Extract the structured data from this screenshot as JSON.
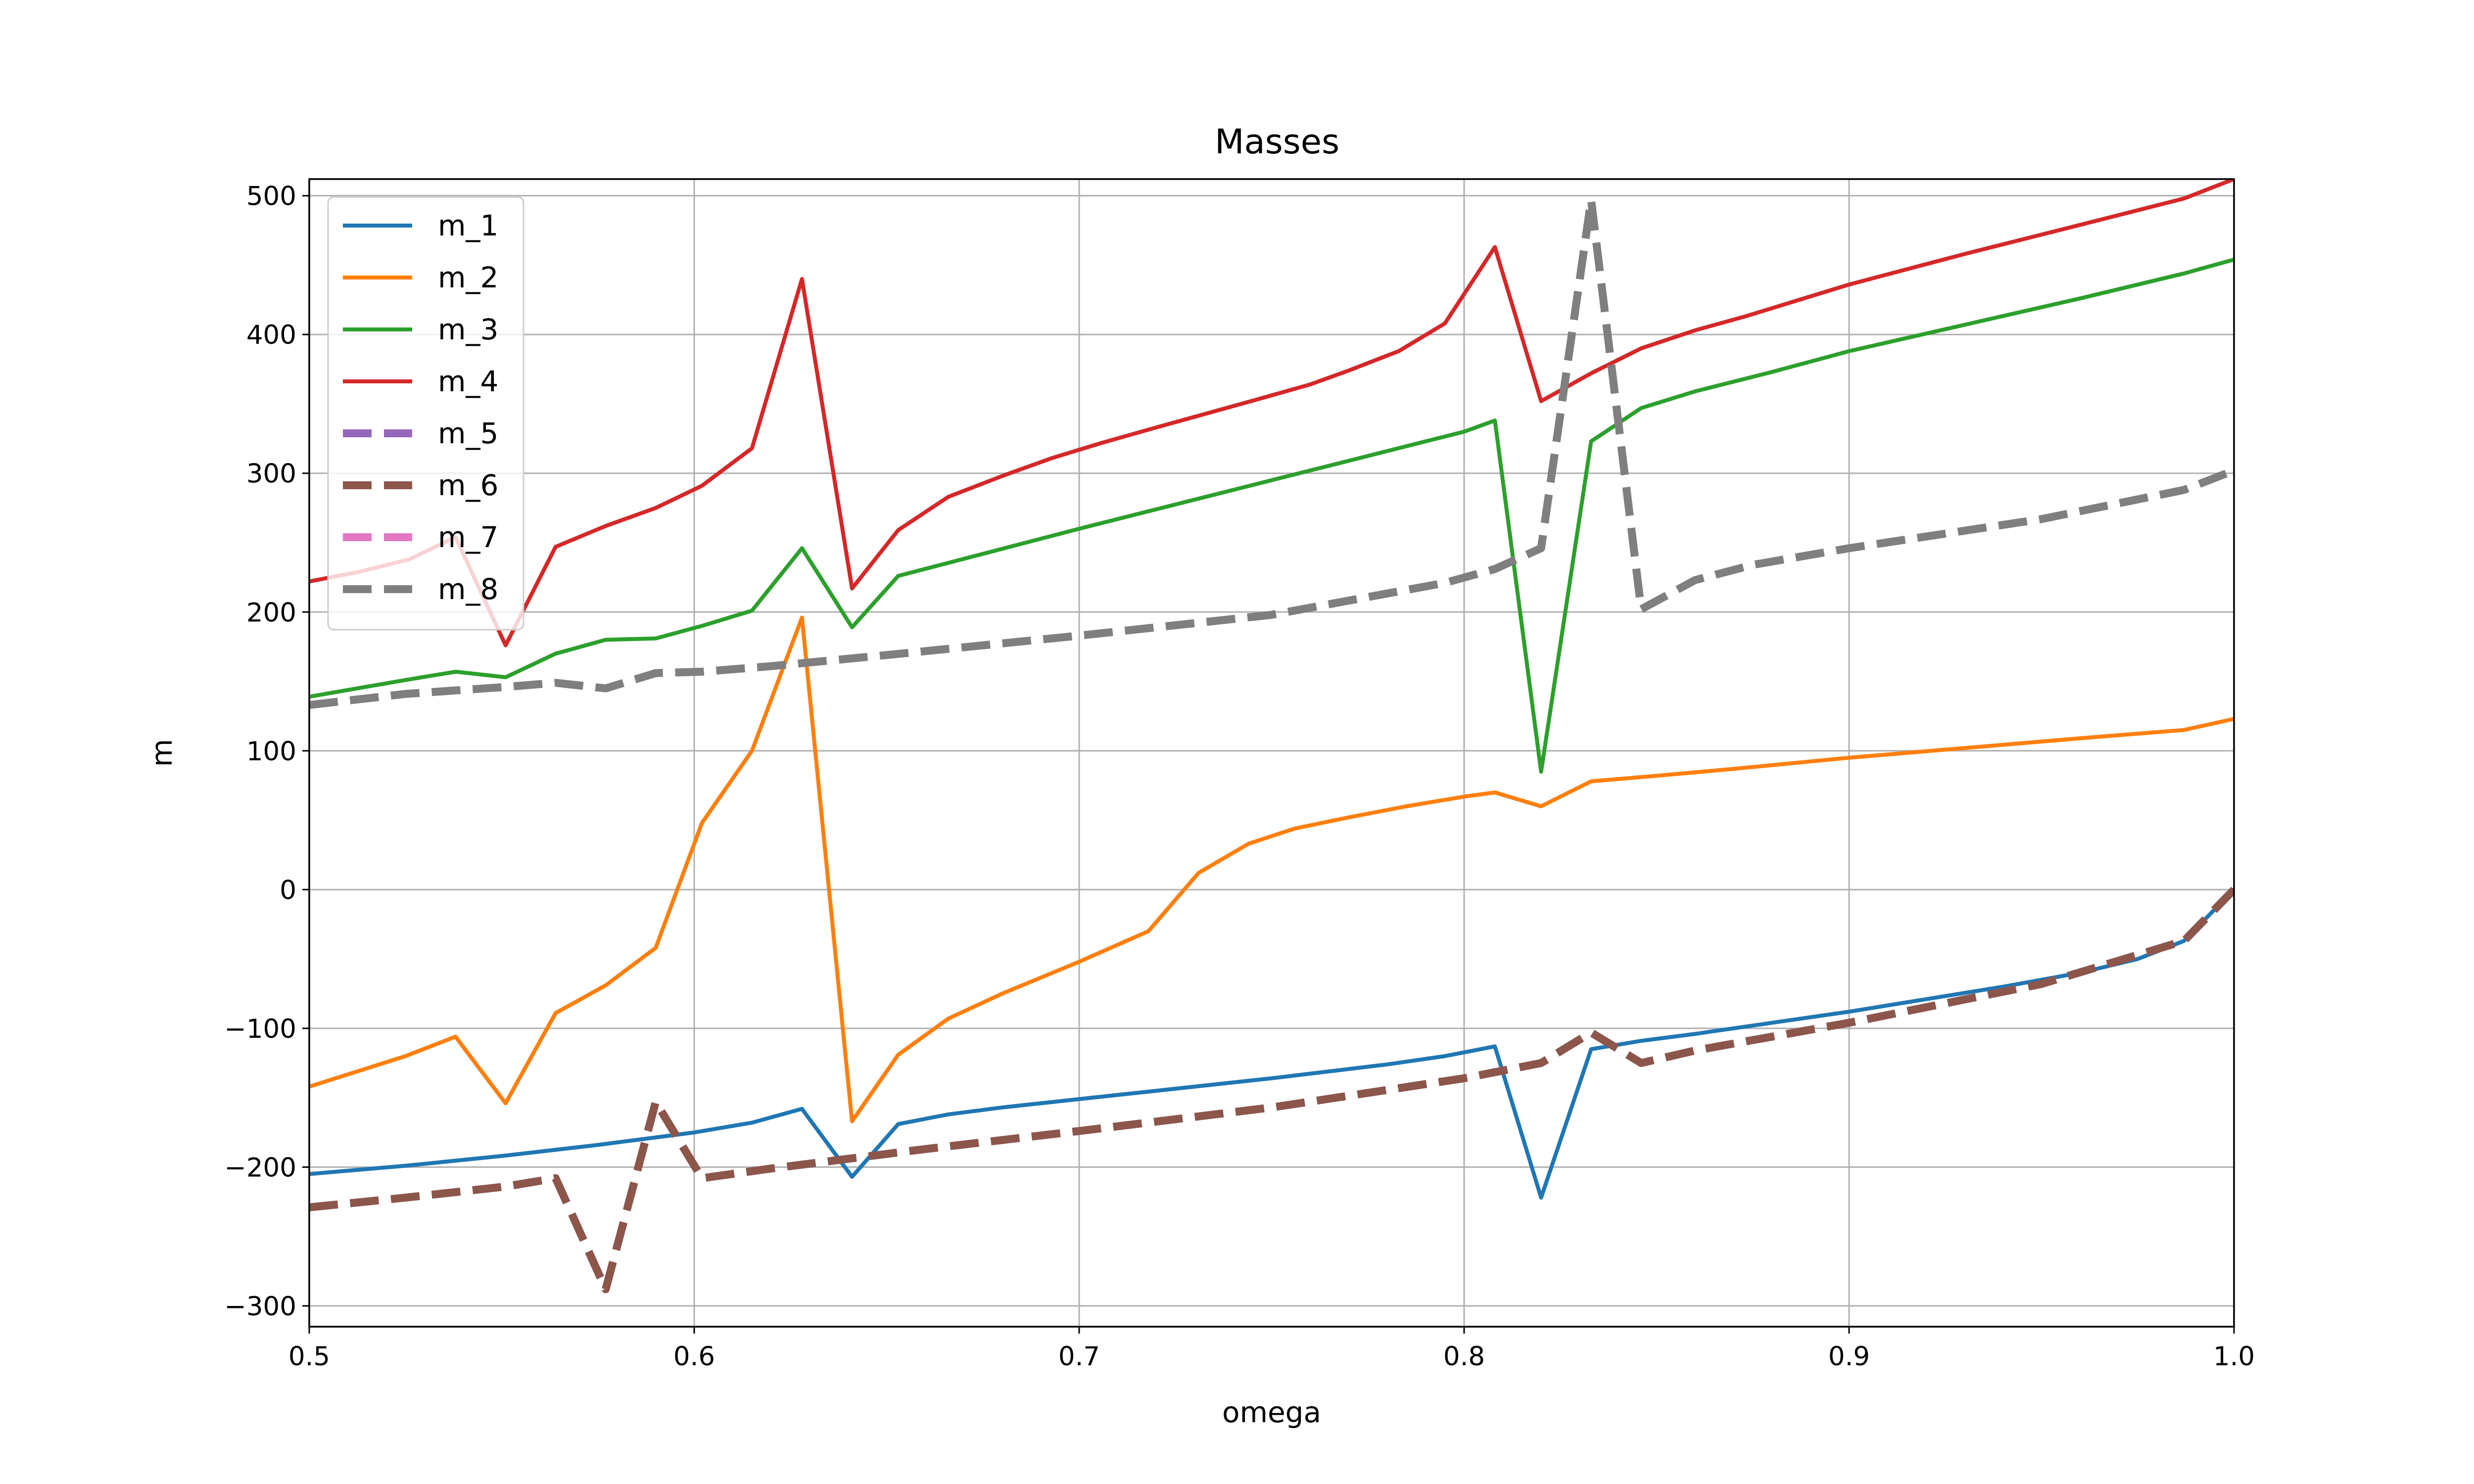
{
  "chart_data": {
    "type": "line",
    "title": "Masses",
    "xlabel": "omega",
    "ylabel": "m",
    "xlim": [
      0.5,
      1.0
    ],
    "ylim": [
      -315,
      512
    ],
    "xticks": [
      0.5,
      0.6,
      0.7,
      0.8,
      0.9,
      1.0
    ],
    "xtick_labels": [
      "0.5",
      "0.6",
      "0.7",
      "0.8",
      "0.9",
      "1.0"
    ],
    "yticks": [
      -300,
      -200,
      -100,
      0,
      100,
      200,
      300,
      400,
      500
    ],
    "ytick_labels": [
      "−300",
      "−200",
      "−100",
      "0",
      "100",
      "200",
      "300",
      "400",
      "500"
    ],
    "grid": true,
    "legend_position": "top-left",
    "series": [
      {
        "name": "m_1",
        "color": "#1f77b4",
        "dashed": false,
        "x": [
          0.5,
          0.525,
          0.55,
          0.575,
          0.6,
          0.615,
          0.628,
          0.641,
          0.653,
          0.666,
          0.68,
          0.7,
          0.72,
          0.75,
          0.78,
          0.795,
          0.808,
          0.82,
          0.833,
          0.846,
          0.86,
          0.88,
          0.9,
          0.92,
          0.94,
          0.96,
          0.975,
          0.987,
          1.0
        ],
        "y": [
          -205,
          -199,
          -192,
          -184,
          -175,
          -168,
          -158,
          -207,
          -169,
          -162,
          -157,
          -151,
          -145,
          -136,
          -126,
          -120,
          -113,
          -222,
          -115,
          -109,
          -104,
          -96,
          -88,
          -79,
          -70,
          -60,
          -50,
          -37,
          0
        ]
      },
      {
        "name": "m_2",
        "color": "#ff7f0e",
        "dashed": false,
        "x": [
          0.5,
          0.525,
          0.538,
          0.551,
          0.564,
          0.577,
          0.59,
          0.602,
          0.615,
          0.628,
          0.641,
          0.653,
          0.666,
          0.68,
          0.7,
          0.718,
          0.731,
          0.744,
          0.756,
          0.77,
          0.785,
          0.8,
          0.808,
          0.82,
          0.833,
          0.85,
          0.87,
          0.9,
          0.93,
          0.96,
          0.987,
          1.0
        ],
        "y": [
          -142,
          -120,
          -106,
          -154,
          -89,
          -69,
          -42,
          48,
          100,
          196,
          -167,
          -119,
          -93,
          -75,
          -52,
          -30,
          12,
          33,
          44,
          52,
          60,
          67,
          70,
          60,
          78,
          82,
          87,
          95,
          102,
          109,
          115,
          123
        ]
      },
      {
        "name": "m_3",
        "color": "#2ca02c",
        "dashed": false,
        "x": [
          0.5,
          0.525,
          0.538,
          0.551,
          0.564,
          0.577,
          0.59,
          0.602,
          0.615,
          0.628,
          0.641,
          0.653,
          0.7,
          0.75,
          0.8,
          0.808,
          0.82,
          0.833,
          0.846,
          0.86,
          0.88,
          0.9,
          0.93,
          0.96,
          0.987,
          1.0
        ],
        "y": [
          139,
          151,
          157,
          153,
          170,
          180,
          181,
          190,
          201,
          246,
          189,
          226,
          260,
          295,
          330,
          338,
          85,
          323,
          347,
          359,
          373,
          388,
          407,
          426,
          444,
          454
        ]
      },
      {
        "name": "m_4",
        "color": "#d62728",
        "dashed": false,
        "x": [
          0.5,
          0.513,
          0.526,
          0.538,
          0.551,
          0.564,
          0.577,
          0.59,
          0.602,
          0.615,
          0.628,
          0.641,
          0.653,
          0.666,
          0.68,
          0.693,
          0.706,
          0.72,
          0.733,
          0.746,
          0.76,
          0.77,
          0.783,
          0.795,
          0.808,
          0.82,
          0.833,
          0.846,
          0.86,
          0.873,
          0.9,
          0.93,
          0.96,
          0.987,
          1.0
        ],
        "y": [
          222,
          229,
          238,
          254,
          176,
          247,
          262,
          275,
          291,
          318,
          440,
          217,
          259,
          283,
          298,
          311,
          322,
          333,
          343,
          353,
          364,
          374,
          388,
          408,
          463,
          352,
          372,
          390,
          403,
          413,
          436,
          458,
          479,
          498,
          512
        ]
      },
      {
        "name": "m_5",
        "color": "#9467bd",
        "dashed": true,
        "x": [
          0.5,
          0.525,
          0.551,
          0.564,
          0.577,
          0.59,
          0.602,
          0.62,
          0.64,
          0.66,
          0.7,
          0.75,
          0.8,
          0.82,
          0.833,
          0.846,
          0.86,
          0.9,
          0.95,
          0.987,
          1.0
        ],
        "y": [
          -229,
          -222,
          -214,
          -208,
          -288,
          -153,
          -208,
          -201,
          -194,
          -187,
          -174,
          -157,
          -136,
          -125,
          -103,
          -125,
          -116,
          -96,
          -68,
          -37,
          0
        ]
      },
      {
        "name": "m_6",
        "color": "#8c564b",
        "dashed": true,
        "x": [
          0.5,
          0.525,
          0.551,
          0.564,
          0.577,
          0.59,
          0.602,
          0.62,
          0.64,
          0.66,
          0.7,
          0.75,
          0.8,
          0.82,
          0.833,
          0.846,
          0.86,
          0.9,
          0.95,
          0.987,
          1.0
        ],
        "y": [
          -229,
          -222,
          -214,
          -208,
          -288,
          -153,
          -208,
          -201,
          -194,
          -187,
          -174,
          -157,
          -136,
          -125,
          -103,
          -125,
          -116,
          -96,
          -68,
          -37,
          0
        ]
      },
      {
        "name": "m_7",
        "color": "#e377c2",
        "dashed": true,
        "x": [
          0.5,
          0.525,
          0.551,
          0.564,
          0.577,
          0.59,
          0.602,
          0.62,
          0.65,
          0.7,
          0.75,
          0.795,
          0.808,
          0.82,
          0.833,
          0.846,
          0.86,
          0.875,
          0.9,
          0.95,
          0.987,
          1.0
        ],
        "y": [
          133,
          141,
          146,
          149,
          145,
          156,
          157,
          161,
          169,
          183,
          198,
          221,
          231,
          246,
          497,
          202,
          223,
          234,
          246,
          267,
          288,
          302
        ]
      },
      {
        "name": "m_8",
        "color": "#7f7f7f",
        "dashed": true,
        "x": [
          0.5,
          0.525,
          0.551,
          0.564,
          0.577,
          0.59,
          0.602,
          0.62,
          0.65,
          0.7,
          0.75,
          0.795,
          0.808,
          0.82,
          0.833,
          0.846,
          0.86,
          0.875,
          0.9,
          0.95,
          0.987,
          1.0
        ],
        "y": [
          133,
          141,
          146,
          149,
          145,
          156,
          157,
          161,
          169,
          183,
          198,
          221,
          231,
          246,
          497,
          202,
          223,
          234,
          246,
          267,
          288,
          302
        ]
      }
    ]
  }
}
